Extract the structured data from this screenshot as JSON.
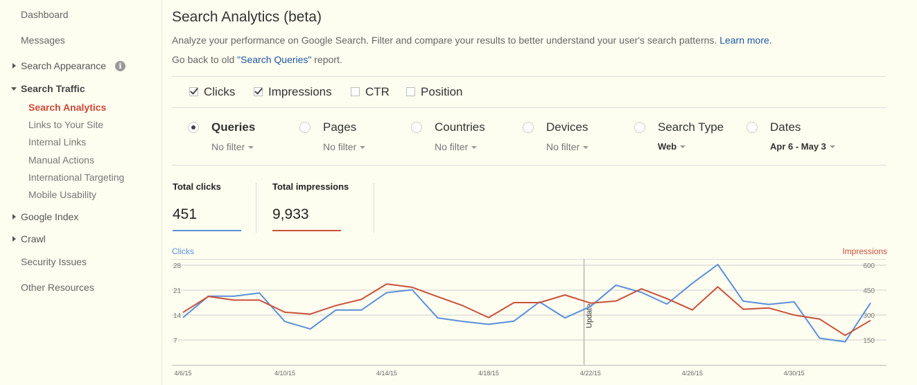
{
  "sidebar": {
    "items": [
      {
        "label": "Dashboard"
      },
      {
        "label": "Messages"
      },
      {
        "label": "Search Appearance"
      },
      {
        "label": "Search Traffic"
      },
      {
        "label": "Google Index"
      },
      {
        "label": "Crawl"
      },
      {
        "label": "Security Issues"
      },
      {
        "label": "Other Resources"
      }
    ],
    "search_traffic_sub": [
      {
        "label": "Search Analytics"
      },
      {
        "label": "Links to Your Site"
      },
      {
        "label": "Internal Links"
      },
      {
        "label": "Manual Actions"
      },
      {
        "label": "International Targeting"
      },
      {
        "label": "Mobile Usability"
      }
    ],
    "info_icon": "i"
  },
  "header": {
    "title": "Search Analytics (beta)",
    "description": "Analyze your performance on Google Search. Filter and compare your results to better understand your user's search patterns.",
    "learn_more": "Learn more.",
    "back_prefix": "Go back to old ",
    "back_link": "\"Search Queries\"",
    "back_suffix": " report."
  },
  "metrics": [
    {
      "label": "Clicks",
      "checked": true
    },
    {
      "label": "Impressions",
      "checked": true
    },
    {
      "label": "CTR",
      "checked": false
    },
    {
      "label": "Position",
      "checked": false
    }
  ],
  "dimensions": [
    {
      "label": "Queries",
      "filter": "No filter",
      "selected": true
    },
    {
      "label": "Pages",
      "filter": "No filter",
      "selected": false
    },
    {
      "label": "Countries",
      "filter": "No filter",
      "selected": false
    },
    {
      "label": "Devices",
      "filter": "No filter",
      "selected": false
    },
    {
      "label": "Search Type",
      "filter": "Web",
      "selected": false
    },
    {
      "label": "Dates",
      "filter": "Apr 6 - May 3",
      "selected": false
    }
  ],
  "totals": {
    "clicks_label": "Total clicks",
    "clicks_value": "451",
    "impressions_label": "Total impressions",
    "impressions_value": "9,933"
  },
  "colors": {
    "clicks": "#5b8fd9",
    "impressions": "#c9503a",
    "link": "#1e55a4",
    "active_nav": "#d14836"
  },
  "chart_data": {
    "type": "line",
    "left_axis_title": "Clicks",
    "right_axis_title": "Impressions",
    "y_left_ticks": [
      7,
      14,
      21,
      28
    ],
    "y_right_ticks": [
      150,
      300,
      450,
      600
    ],
    "y_left_range": [
      0,
      28
    ],
    "y_right_range": [
      0,
      600
    ],
    "x_tick_labels": [
      "4/6/15",
      "4/10/15",
      "4/14/15",
      "4/18/15",
      "4/22/15",
      "4/26/15",
      "4/30/15"
    ],
    "annotation": "Update",
    "x": [
      "4/6/15",
      "4/7/15",
      "4/8/15",
      "4/9/15",
      "4/10/15",
      "4/11/15",
      "4/12/15",
      "4/13/15",
      "4/14/15",
      "4/15/15",
      "4/16/15",
      "4/17/15",
      "4/18/15",
      "4/19/15",
      "4/20/15",
      "4/21/15",
      "4/22/15",
      "4/23/15",
      "4/24/15",
      "4/25/15",
      "4/26/15",
      "4/27/15",
      "4/28/15",
      "4/29/15",
      "4/30/15",
      "5/1/15",
      "5/2/15",
      "5/3/15"
    ],
    "series": [
      {
        "name": "Clicks",
        "axis": "left",
        "values": [
          13.3,
          19.3,
          19.3,
          20.2,
          12.2,
          10.1,
          15.4,
          15.4,
          20.3,
          21.1,
          13.2,
          12.2,
          11.4,
          12.3,
          17.7,
          13.2,
          16.4,
          22.4,
          20.4,
          17.1,
          22.9,
          28.2,
          17.9,
          17.0,
          17.7,
          7.5,
          6.5,
          17.4
        ]
      },
      {
        "name": "Impressions",
        "axis": "right",
        "values": [
          316,
          412,
          390,
          390,
          317,
          306,
          357,
          394,
          487,
          467,
          411,
          356,
          285,
          375,
          375,
          421,
          372,
          384,
          458,
          399,
          331,
          470,
          335,
          343,
          300,
          276,
          178,
          268
        ]
      }
    ]
  }
}
